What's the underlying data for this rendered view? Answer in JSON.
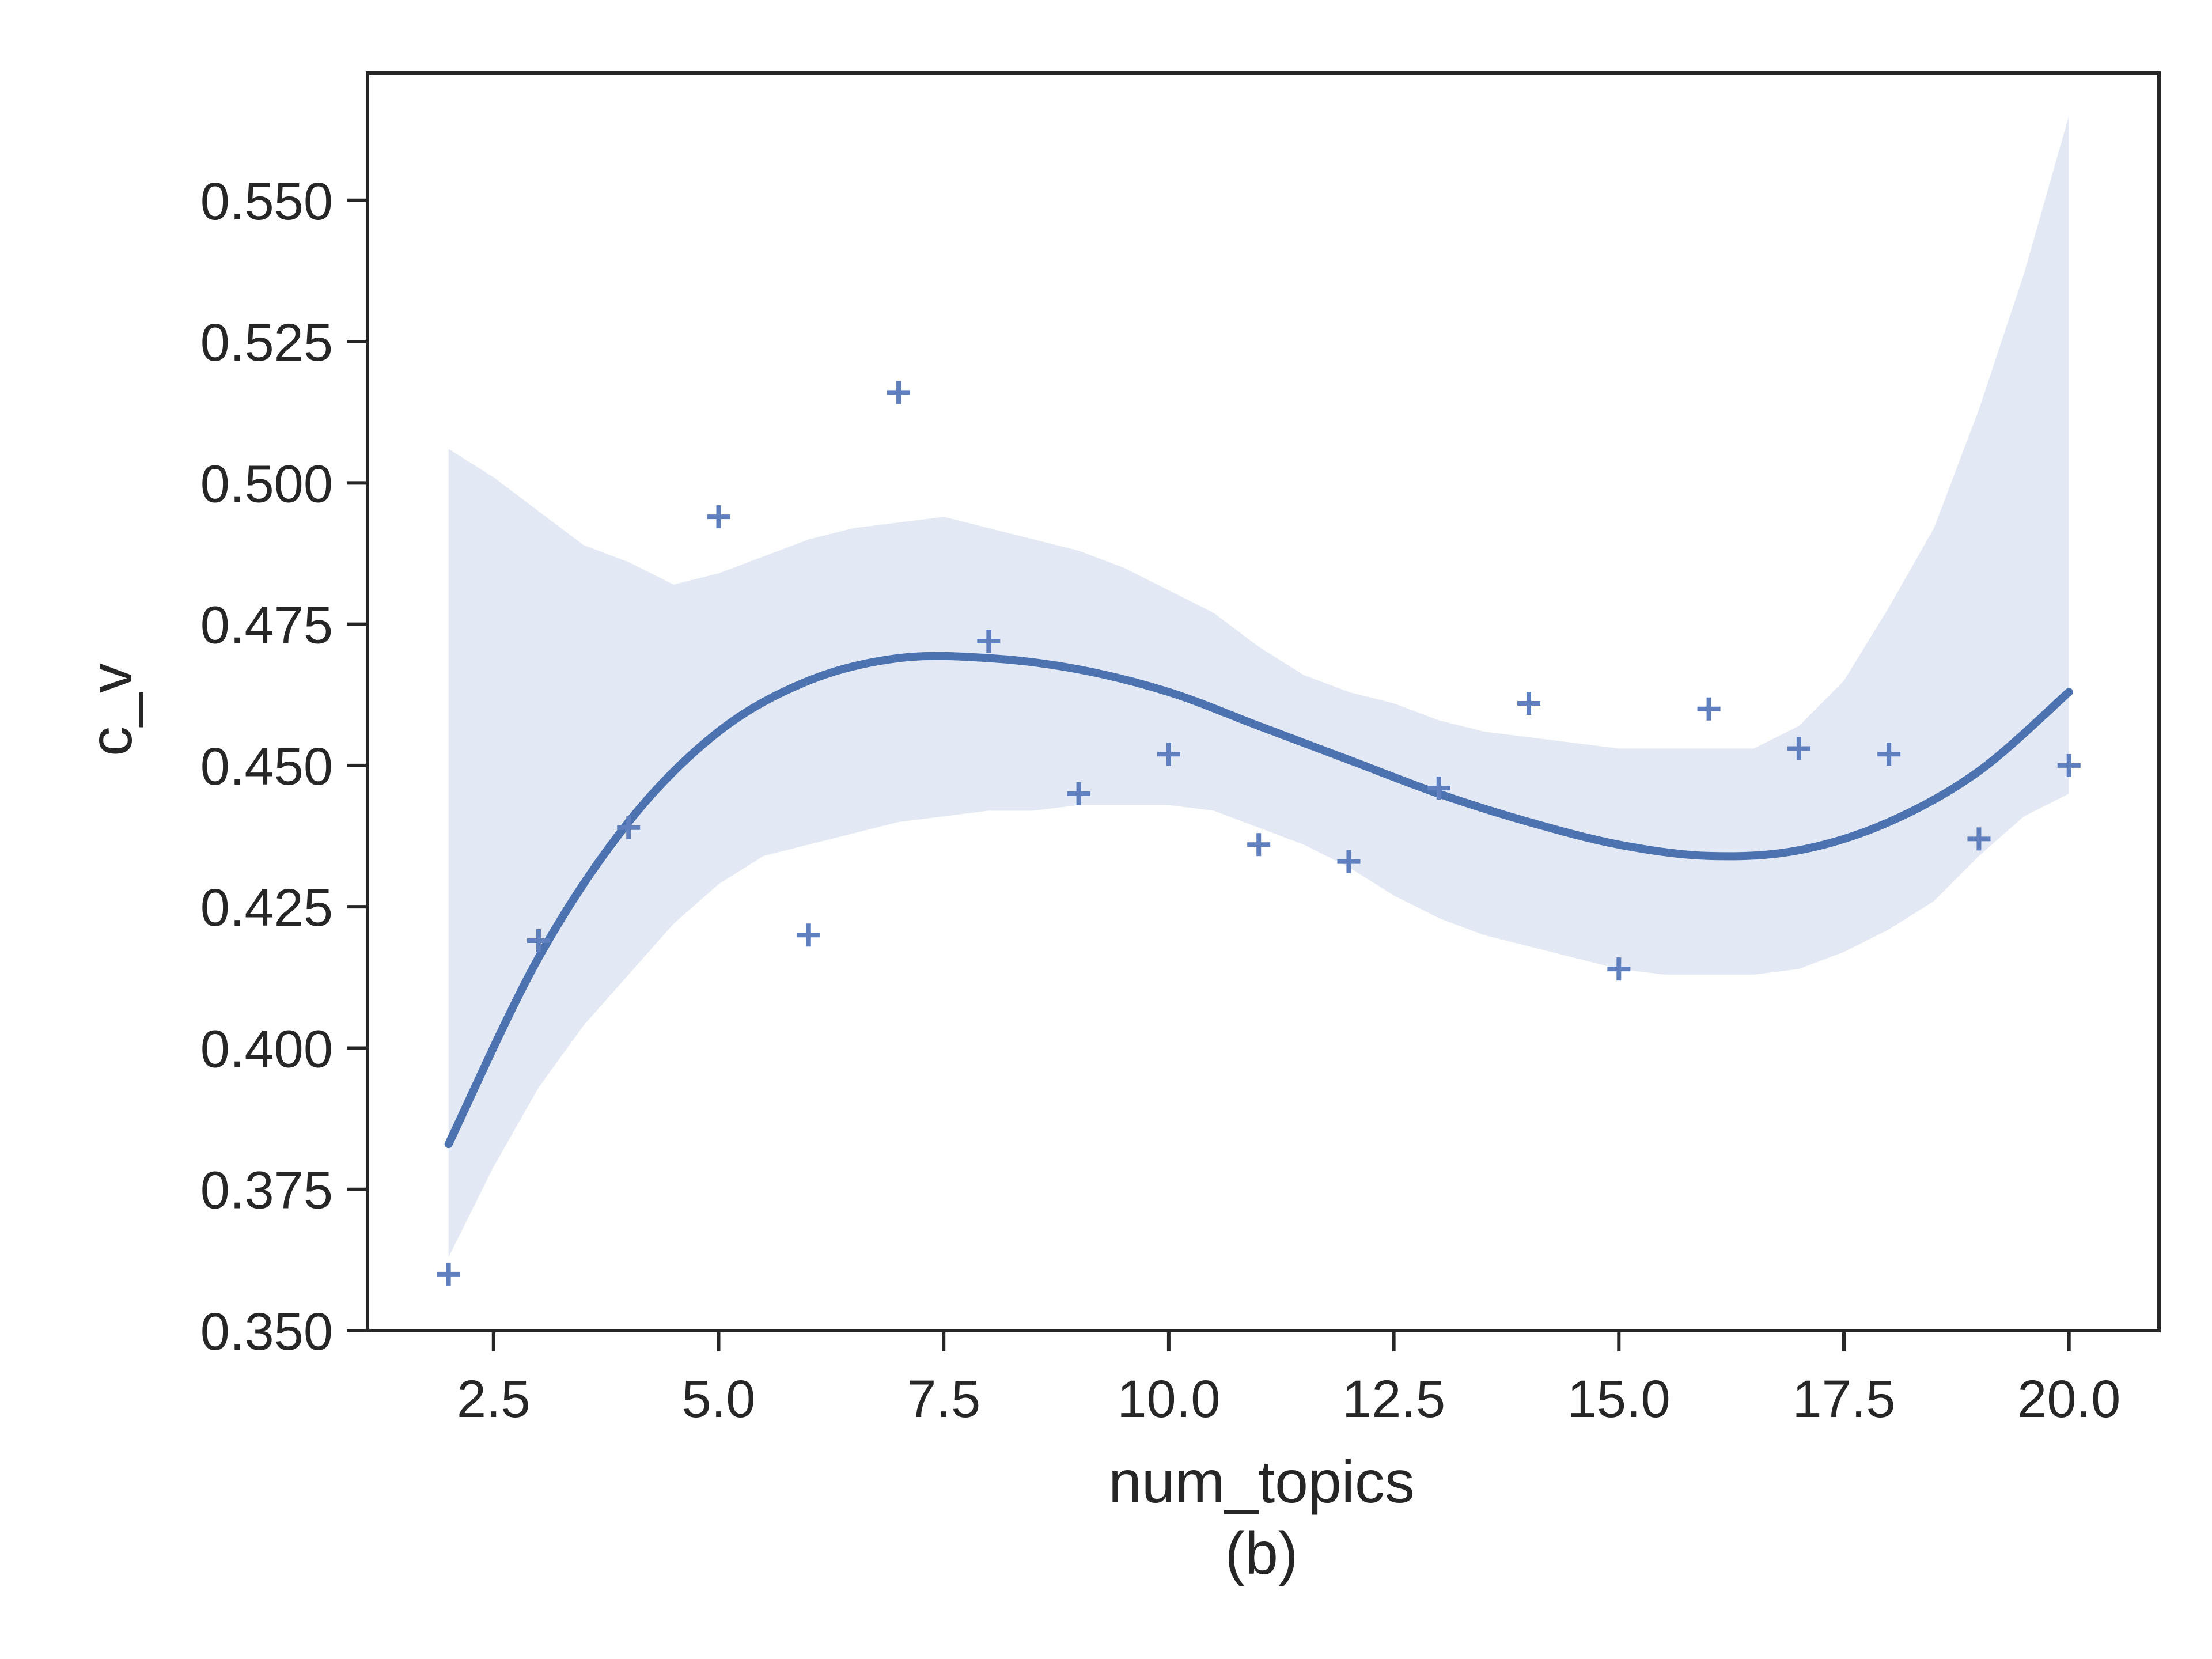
{
  "chart_data": {
    "type": "scatter",
    "xlabel": "num_topics",
    "ylabel": "c_v",
    "caption": "(b)",
    "xlim": [
      1.1,
      21.0
    ],
    "ylim": [
      0.35,
      0.5725
    ],
    "x_ticks": [
      "2.5",
      "5.0",
      "7.5",
      "10.0",
      "12.5",
      "15.0",
      "17.5",
      "20.0"
    ],
    "y_ticks": [
      "0.350",
      "0.375",
      "0.400",
      "0.425",
      "0.450",
      "0.475",
      "0.500",
      "0.525",
      "0.550"
    ],
    "grid": false,
    "colors": {
      "marker": "#5f7fbf",
      "line": "#4c72b0",
      "band": "#e3e9f4",
      "axes": "#262626"
    },
    "points": {
      "x": [
        2,
        3,
        4,
        5,
        6,
        7,
        8,
        9,
        10,
        11,
        12,
        13,
        14,
        15,
        16,
        17,
        18,
        19,
        20
      ],
      "y": [
        0.36,
        0.419,
        0.439,
        0.494,
        0.42,
        0.516,
        0.472,
        0.445,
        0.452,
        0.436,
        0.433,
        0.446,
        0.461,
        0.414,
        0.46,
        0.453,
        0.452,
        0.437,
        0.45
      ]
    },
    "fit": {
      "x": [
        2,
        3,
        4,
        5,
        6,
        7,
        8,
        9,
        10,
        11,
        12,
        13,
        14,
        15,
        16,
        17,
        18,
        19,
        20
      ],
      "y": [
        0.383,
        0.416,
        0.44,
        0.456,
        0.465,
        0.469,
        0.469,
        0.467,
        0.463,
        0.457,
        0.451,
        0.445,
        0.44,
        0.436,
        0.434,
        0.435,
        0.44,
        0.449,
        0.463
      ]
    },
    "confidence_band": {
      "x": [
        2,
        2.5,
        3,
        3.5,
        4,
        4.5,
        5,
        5.5,
        6,
        6.5,
        7,
        7.5,
        8,
        8.5,
        9,
        9.5,
        10,
        10.5,
        11,
        11.5,
        12,
        12.5,
        13,
        13.5,
        14,
        14.5,
        15,
        15.5,
        16,
        16.5,
        17,
        17.5,
        18,
        18.5,
        19,
        19.5,
        20
      ],
      "upper": [
        0.506,
        0.501,
        0.495,
        0.489,
        0.486,
        0.482,
        0.484,
        0.487,
        0.49,
        0.492,
        0.493,
        0.494,
        0.492,
        0.49,
        0.488,
        0.485,
        0.481,
        0.477,
        0.471,
        0.466,
        0.463,
        0.461,
        0.458,
        0.456,
        0.455,
        0.454,
        0.453,
        0.453,
        0.453,
        0.453,
        0.457,
        0.465,
        0.478,
        0.492,
        0.513,
        0.537,
        0.565
      ],
      "lower": [
        0.363,
        0.379,
        0.393,
        0.404,
        0.413,
        0.422,
        0.429,
        0.434,
        0.436,
        0.438,
        0.44,
        0.441,
        0.442,
        0.442,
        0.443,
        0.443,
        0.443,
        0.442,
        0.439,
        0.436,
        0.432,
        0.427,
        0.423,
        0.42,
        0.418,
        0.416,
        0.414,
        0.413,
        0.413,
        0.413,
        0.414,
        0.417,
        0.421,
        0.426,
        0.434,
        0.441,
        0.445
      ]
    }
  }
}
